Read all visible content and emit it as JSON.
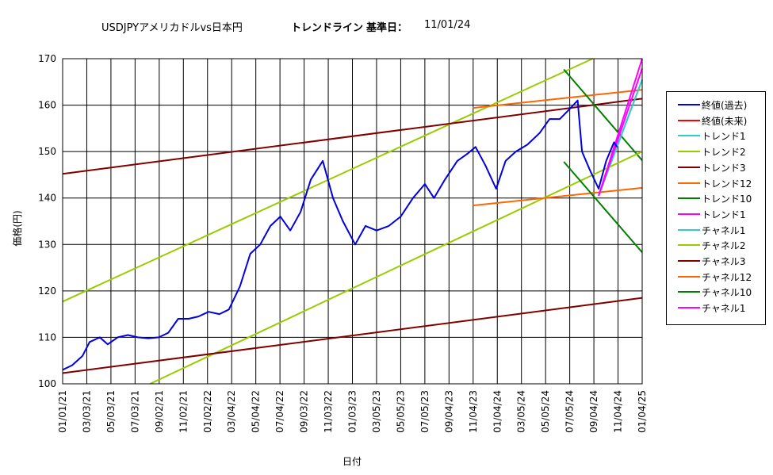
{
  "header": {
    "pair": "USDJPYアメリカドルvs日本円",
    "label": "トレンドライン",
    "base_label": "基準日：",
    "base_date": "11/01/24"
  },
  "chart_data": {
    "type": "line",
    "xlabel": "日付",
    "ylabel": "価格(円)",
    "ylim": [
      100,
      170
    ],
    "ytick_step": 10,
    "grid": true,
    "legend_position": "right",
    "x_tick_labels": [
      "01/01/21",
      "03/03/21",
      "05/03/21",
      "07/03/21",
      "09/02/21",
      "11/02/21",
      "01/02/22",
      "03/04/22",
      "05/04/22",
      "07/04/22",
      "09/03/22",
      "11/03/22",
      "01/03/23",
      "03/05/23",
      "05/05/23",
      "07/05/23",
      "09/04/23",
      "11/04/23",
      "01/04/24",
      "03/05/24",
      "05/05/24",
      "07/05/24",
      "09/04/24",
      "11/04/24",
      "01/04/25"
    ],
    "price_series": {
      "name": "終値(過去)",
      "color": "#0000e0",
      "dates": [
        "2021-01-01",
        "2021-01-25",
        "2021-02-20",
        "2021-03-10",
        "2021-04-05",
        "2021-04-25",
        "2021-05-20",
        "2021-06-15",
        "2021-07-10",
        "2021-08-05",
        "2021-09-01",
        "2021-09-25",
        "2021-10-20",
        "2021-11-15",
        "2021-12-10",
        "2022-01-05",
        "2022-02-01",
        "2022-02-25",
        "2022-03-25",
        "2022-04-20",
        "2022-05-15",
        "2022-06-10",
        "2022-07-05",
        "2022-07-30",
        "2022-08-25",
        "2022-09-20",
        "2022-10-20",
        "2022-11-15",
        "2022-12-10",
        "2023-01-10",
        "2023-02-05",
        "2023-03-05",
        "2023-04-05",
        "2023-05-05",
        "2023-06-05",
        "2023-07-05",
        "2023-07-28",
        "2023-08-25",
        "2023-09-25",
        "2023-10-20",
        "2023-11-10",
        "2023-12-05",
        "2024-01-01",
        "2024-01-25",
        "2024-02-20",
        "2024-03-20",
        "2024-04-20",
        "2024-05-15",
        "2024-06-10",
        "2024-07-03",
        "2024-07-25",
        "2024-08-05",
        "2024-08-25",
        "2024-09-16",
        "2024-10-05",
        "2024-10-25",
        "2024-11-01"
      ],
      "values": [
        103,
        104,
        106,
        109,
        110,
        108.5,
        110,
        110.5,
        110,
        109.8,
        110,
        111,
        114,
        114,
        114.5,
        115.5,
        115,
        116,
        121,
        128,
        130,
        134,
        136,
        133,
        137,
        144,
        148,
        140,
        135,
        130,
        134,
        133,
        134,
        136,
        140,
        143,
        140,
        144,
        148,
        149.5,
        151,
        147,
        142,
        148,
        150,
        151.5,
        154,
        157,
        157,
        159,
        161,
        150,
        146,
        142,
        148,
        152,
        151
      ]
    },
    "series": [
      {
        "name": "終値(過去)",
        "color": "#0000e0"
      },
      {
        "name": "終値(未来)",
        "color": "#ff0000"
      },
      {
        "name": "トレンド1",
        "color": "#33cccc",
        "start": [
          "2024-09-16",
          140.5
        ],
        "end": [
          "2025-01-04",
          165.5
        ]
      },
      {
        "name": "トレンド2",
        "color": "#99cc00",
        "start": [
          "2021-01-01",
          117.7
        ],
        "end": [
          "2024-09-01",
          170
        ]
      },
      {
        "name": "トレンド3",
        "color": "#800000",
        "start": [
          "2021-01-01",
          145.2
        ],
        "end": [
          "2025-01-04",
          161.4
        ]
      },
      {
        "name": "トレンド12",
        "color": "#ff6600",
        "start": [
          "2023-11-04",
          159.4
        ],
        "end": [
          "2025-01-04",
          163.3
        ]
      },
      {
        "name": "トレンド10",
        "color": "#008000",
        "start": [
          "2024-06-20",
          167.7
        ],
        "end": [
          "2025-01-04",
          148.1
        ]
      },
      {
        "name": "トレンド1",
        "color": "#ff00ff",
        "start": [
          "2024-09-16",
          140.5
        ],
        "end": [
          "2025-01-04",
          170
        ]
      },
      {
        "name": "チャネル1",
        "color": "#33cccc",
        "start": [
          "2024-09-16",
          140.5
        ],
        "end": [
          "2025-01-04",
          165.5
        ]
      },
      {
        "name": "チャネル2",
        "color": "#99cc00",
        "start": [
          "2021-08-10",
          100
        ],
        "end": [
          "2025-01-04",
          150
        ]
      },
      {
        "name": "チャネル3",
        "color": "#800000",
        "start": [
          "2021-01-01",
          102.3
        ],
        "end": [
          "2025-01-04",
          118.5
        ]
      },
      {
        "name": "チャネル12",
        "color": "#ff6600",
        "start": [
          "2023-11-04",
          138.4
        ],
        "end": [
          "2025-01-04",
          142.2
        ]
      },
      {
        "name": "チャネル10",
        "color": "#008000",
        "start": [
          "2024-06-20",
          147.8
        ],
        "end": [
          "2025-01-04",
          128.3
        ]
      },
      {
        "name": "チャネル1",
        "color": "#ff00ff",
        "start": [
          "2024-09-16",
          140.5
        ],
        "end": [
          "2025-01-04",
          167.9
        ]
      }
    ]
  }
}
